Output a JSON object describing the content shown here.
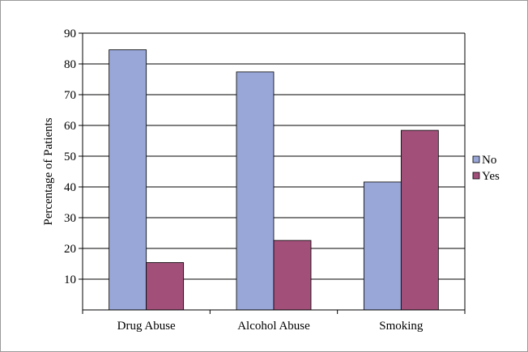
{
  "chart_data": {
    "type": "bar",
    "title": "",
    "xlabel": "",
    "ylabel": "Percentage of Patients",
    "categories": [
      "Drug Abuse",
      "Alcohol Abuse",
      "Smoking"
    ],
    "series": [
      {
        "name": "No",
        "values": [
          84.6,
          77.4,
          41.6
        ],
        "color": "#99a6d8"
      },
      {
        "name": "Yes",
        "values": [
          15.4,
          22.6,
          58.4
        ],
        "color": "#a2507a"
      }
    ],
    "ylim": [
      0,
      90
    ],
    "yticks": [
      10,
      20,
      30,
      40,
      50,
      60,
      70,
      80,
      90
    ],
    "ytick_labels": [
      "10",
      "20",
      "30",
      "40",
      "50",
      "60",
      "70",
      "80",
      "90"
    ],
    "grid": true,
    "legend_position": "right"
  }
}
